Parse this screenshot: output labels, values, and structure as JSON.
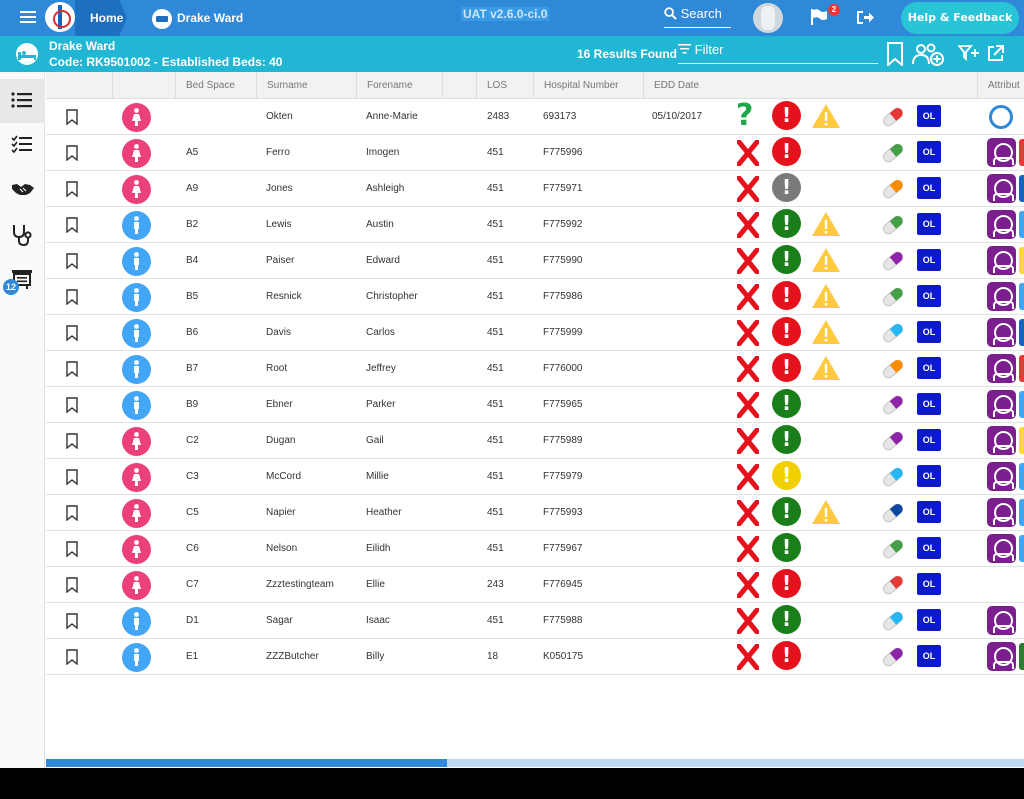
{
  "header": {
    "home_label": "Home",
    "ward_crumb": "Drake Ward",
    "environment": "UAT v2.6.0-ci.0",
    "search_label": "Search",
    "notification_count": "2",
    "help_label": "Help & Feedback"
  },
  "ward": {
    "name": "Drake Ward",
    "code": "Code: RK9501002 -",
    "established_beds": "Established Beds: 40",
    "results": "16 Results Found",
    "filter_label": "Filter"
  },
  "sidebar": {
    "badge": "12",
    "items": [
      "list-view",
      "task-list",
      "handover",
      "clinical",
      "board"
    ]
  },
  "table": {
    "columns": [
      "Bed Space",
      "Surname",
      "Forename",
      "LOS",
      "Hospital Number",
      "EDD Date",
      "Attribut"
    ],
    "rows": [
      {
        "gender": "f",
        "bed": "",
        "surname": "Okten",
        "forename": "Anne-Marie",
        "los": "2483",
        "hospnum": "693173",
        "edd": "05/10/2017",
        "status": "question",
        "alert": "red",
        "warning": true,
        "pill": "#e53935",
        "attr": "ring",
        "strip": ""
      },
      {
        "gender": "f",
        "bed": "A5",
        "surname": "Ferro",
        "forename": "Imogen",
        "los": "451",
        "hospnum": "F775996",
        "edd": "",
        "status": "x",
        "alert": "red",
        "warning": false,
        "pill": "#43a047",
        "attr": "nurse",
        "strip": "#e53935"
      },
      {
        "gender": "f",
        "bed": "A9",
        "surname": "Jones",
        "forename": "Ashleigh",
        "los": "451",
        "hospnum": "F775971",
        "edd": "",
        "status": "x",
        "alert": "grey",
        "warning": false,
        "pill": "#fb8c00",
        "attr": "nurse",
        "strip": "#1565c0"
      },
      {
        "gender": "m",
        "bed": "B2",
        "surname": "Lewis",
        "forename": "Austin",
        "los": "451",
        "hospnum": "F775992",
        "edd": "",
        "status": "x",
        "alert": "green",
        "warning": true,
        "pill": "#43a047",
        "attr": "nurse",
        "strip": "#42a5f5"
      },
      {
        "gender": "m",
        "bed": "B4",
        "surname": "Paiser",
        "forename": "Edward",
        "los": "451",
        "hospnum": "F775990",
        "edd": "",
        "status": "x",
        "alert": "green",
        "warning": true,
        "pill": "#8e24aa",
        "attr": "nurse",
        "strip": "#fdd835"
      },
      {
        "gender": "m",
        "bed": "B5",
        "surname": "Resnick",
        "forename": "Christopher",
        "los": "451",
        "hospnum": "F775986",
        "edd": "",
        "status": "x",
        "alert": "red",
        "warning": true,
        "pill": "#43a047",
        "attr": "nurse",
        "strip": "#42a5f5"
      },
      {
        "gender": "m",
        "bed": "B6",
        "surname": "Davis",
        "forename": "Carlos",
        "los": "451",
        "hospnum": "F775999",
        "edd": "",
        "status": "x",
        "alert": "red",
        "warning": true,
        "pill": "#29b6f6",
        "attr": "nurse",
        "strip": "#1565c0"
      },
      {
        "gender": "m",
        "bed": "B7",
        "surname": "Root",
        "forename": "Jeffrey",
        "los": "451",
        "hospnum": "F776000",
        "edd": "",
        "status": "x",
        "alert": "red",
        "warning": true,
        "pill": "#fb8c00",
        "attr": "nurse",
        "strip": "#e53935"
      },
      {
        "gender": "m",
        "bed": "B9",
        "surname": "Ebner",
        "forename": "Parker",
        "los": "451",
        "hospnum": "F775965",
        "edd": "",
        "status": "x",
        "alert": "green",
        "warning": false,
        "pill": "#8e24aa",
        "attr": "nurse",
        "strip": "#42a5f5"
      },
      {
        "gender": "f",
        "bed": "C2",
        "surname": "Dugan",
        "forename": "Gail",
        "los": "451",
        "hospnum": "F775989",
        "edd": "",
        "status": "x",
        "alert": "green",
        "warning": false,
        "pill": "#8e24aa",
        "attr": "nurse",
        "strip": "#fdd835"
      },
      {
        "gender": "f",
        "bed": "C3",
        "surname": "McCord",
        "forename": "Millie",
        "los": "451",
        "hospnum": "F775979",
        "edd": "",
        "status": "x",
        "alert": "yellow",
        "warning": false,
        "pill": "#29b6f6",
        "attr": "nurse",
        "strip": "#42a5f5"
      },
      {
        "gender": "f",
        "bed": "C5",
        "surname": "Napier",
        "forename": "Heather",
        "los": "451",
        "hospnum": "F775993",
        "edd": "",
        "status": "x",
        "alert": "green",
        "warning": true,
        "pill": "#0d47a1",
        "attr": "nurse",
        "strip": "#42a5f5"
      },
      {
        "gender": "f",
        "bed": "C6",
        "surname": "Nelson",
        "forename": "Eilidh",
        "los": "451",
        "hospnum": "F775967",
        "edd": "",
        "status": "x",
        "alert": "green",
        "warning": false,
        "pill": "#43a047",
        "attr": "nurse",
        "strip": "#42a5f5"
      },
      {
        "gender": "f",
        "bed": "C7",
        "surname": "Zzztestingteam",
        "forename": "Ellie",
        "los": "243",
        "hospnum": "F776945",
        "edd": "",
        "status": "x",
        "alert": "red",
        "warning": false,
        "pill": "#e53935",
        "attr": "",
        "strip": ""
      },
      {
        "gender": "m",
        "bed": "D1",
        "surname": "Sagar",
        "forename": "Isaac",
        "los": "451",
        "hospnum": "F775988",
        "edd": "",
        "status": "x",
        "alert": "green",
        "warning": false,
        "pill": "#29b6f6",
        "attr": "nurse",
        "strip": ""
      },
      {
        "gender": "m",
        "bed": "E1",
        "surname": "ZZZButcher",
        "forename": "Billy",
        "los": "18",
        "hospnum": "K050175",
        "edd": "",
        "status": "x",
        "alert": "red",
        "warning": false,
        "pill": "#8e24aa",
        "attr": "nurse",
        "strip": "#2e7d32"
      }
    ],
    "ol_label": "OL"
  },
  "colors": {
    "topbar": "#2f88d8",
    "subbar": "#21b7d4",
    "alert_red": "#e5121d",
    "alert_green": "#1a7f1a",
    "alert_grey": "#7a7a7a",
    "alert_yellow": "#f2cf00",
    "warning": "#ffc940",
    "status_x": "#e5121d",
    "status_question": "#1ea84a"
  },
  "scroll": {
    "horizontal_position": 0.41
  }
}
